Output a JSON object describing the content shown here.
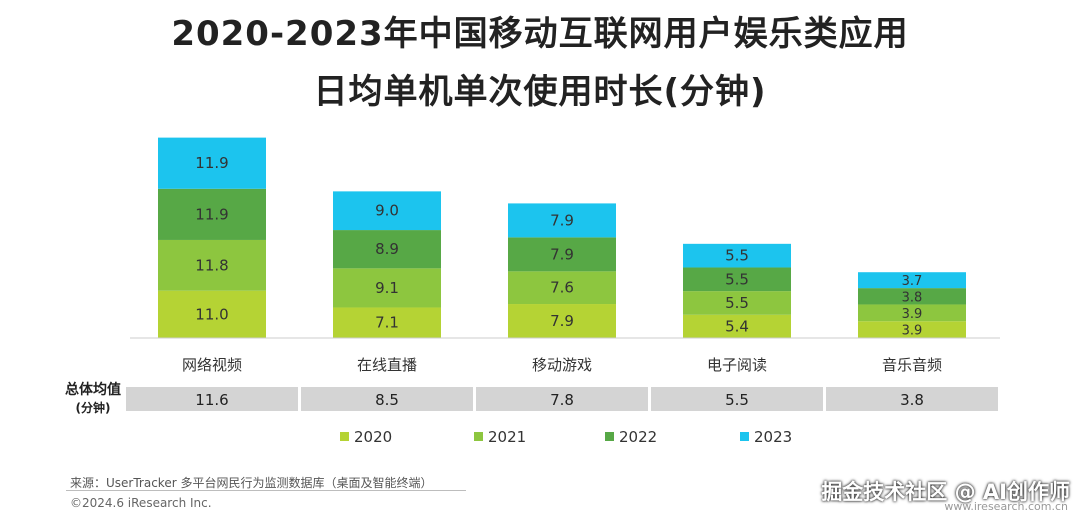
{
  "title_line1": "2020-2023年中国移动互联网用户娱乐类应用",
  "title_line2": "日均单机单次使用时长(分钟)",
  "avg_label": "总体均值",
  "avg_sublabel": "(分钟)",
  "source": "来源：UserTracker 多平台网民行为监测数据库（桌面及智能终端）",
  "copyright": "©2024.6 iResearch Inc.",
  "watermark": "掘金技术社区 @ AI创作师",
  "watermark_url": "www.iresearch.com.cn",
  "colors": {
    "2020": "#b5d334",
    "2021": "#8dc63f",
    "2022": "#57a846",
    "2023": "#1cc4ee",
    "avg_bg": "#d4d4d4"
  },
  "chart_data": {
    "type": "bar",
    "stacked": true,
    "title": "2020-2023年中国移动互联网用户娱乐类应用日均单机单次使用时长(分钟)",
    "categories": [
      "网络视频",
      "在线直播",
      "移动游戏",
      "电子阅读",
      "音乐音频"
    ],
    "series": [
      {
        "name": "2020",
        "values": [
          11.0,
          7.1,
          7.9,
          5.4,
          3.9
        ]
      },
      {
        "name": "2021",
        "values": [
          11.8,
          9.1,
          7.6,
          5.5,
          3.9
        ]
      },
      {
        "name": "2022",
        "values": [
          11.9,
          8.9,
          7.9,
          5.5,
          3.8
        ]
      },
      {
        "name": "2023",
        "values": [
          11.9,
          9.0,
          7.9,
          5.5,
          3.7
        ]
      }
    ],
    "averages": [
      11.6,
      8.5,
      7.8,
      5.5,
      3.8
    ],
    "legend_position": "bottom",
    "grid": false
  }
}
